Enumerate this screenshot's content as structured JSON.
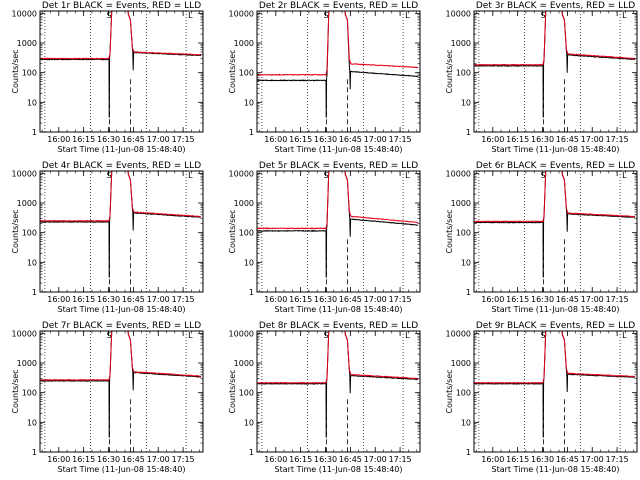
{
  "colors": {
    "events": "#000000",
    "lld": "#e8001c",
    "axes": "#000000",
    "background": "#ffffff"
  },
  "axes_common": {
    "ylabel": "Counts/sec",
    "xlabel": "Start Time (11-Jun-08 15:48:40)",
    "xtick_labels": [
      "16:00",
      "16:15",
      "16:30",
      "16:45",
      "17:00",
      "17:15"
    ],
    "xtick_minutes": [
      16.0,
      16.25,
      16.5,
      16.75,
      17.0,
      17.25
    ],
    "xlim_hours": [
      15.811,
      17.45
    ],
    "ytick_labels": [
      "1",
      "10",
      "100",
      "1000",
      "10000"
    ],
    "ytick_values": [
      1,
      10,
      100,
      1000,
      10000
    ],
    "ylim": [
      1,
      12000
    ],
    "yscale": "log",
    "dotted_verticals_hours": [
      15.86,
      16.32,
      16.88,
      17.28
    ],
    "dashed_verticals_hours": [
      16.51,
      16.72
    ],
    "saa_markers": [
      "S",
      "L"
    ]
  },
  "chart_data": [
    {
      "type": "line",
      "title": "Det 1r BLACK = Events, RED = LLD",
      "series": [
        {
          "values_before": 280,
          "values_after": 480,
          "after_end": 380
        },
        {
          "values_before": 300,
          "values_after": 500,
          "after_end": 400
        }
      ]
    },
    {
      "type": "line",
      "title": "Det 2r BLACK = Events, RED = LLD",
      "series": [
        {
          "values_before": 55,
          "values_after": 110,
          "after_end": 75
        },
        {
          "values_before": 85,
          "values_after": 200,
          "after_end": 150
        }
      ]
    },
    {
      "type": "line",
      "title": "Det 3r BLACK = Events, RED = LLD",
      "series": [
        {
          "values_before": 170,
          "values_after": 400,
          "after_end": 280
        },
        {
          "values_before": 185,
          "values_after": 430,
          "after_end": 300
        }
      ]
    },
    {
      "type": "line",
      "title": "Det 4r BLACK = Events, RED = LLD",
      "series": [
        {
          "values_before": 230,
          "values_after": 470,
          "after_end": 330
        },
        {
          "values_before": 250,
          "values_after": 500,
          "after_end": 350
        }
      ]
    },
    {
      "type": "line",
      "title": "Det 5r BLACK = Events, RED = LLD",
      "series": [
        {
          "values_before": 115,
          "values_after": 290,
          "after_end": 180
        },
        {
          "values_before": 140,
          "values_after": 360,
          "after_end": 220
        }
      ]
    },
    {
      "type": "line",
      "title": "Det 6r BLACK = Events, RED = LLD",
      "series": [
        {
          "values_before": 220,
          "values_after": 430,
          "after_end": 330
        },
        {
          "values_before": 240,
          "values_after": 460,
          "after_end": 350
        }
      ]
    },
    {
      "type": "line",
      "title": "Det 7r BLACK = Events, RED = LLD",
      "series": [
        {
          "values_before": 250,
          "values_after": 480,
          "after_end": 340
        },
        {
          "values_before": 270,
          "values_after": 510,
          "after_end": 360
        }
      ]
    },
    {
      "type": "line",
      "title": "Det 8r BLACK = Events, RED = LLD",
      "series": [
        {
          "values_before": 200,
          "values_after": 380,
          "after_end": 280
        },
        {
          "values_before": 215,
          "values_after": 410,
          "after_end": 300
        }
      ]
    },
    {
      "type": "line",
      "title": "Det 9r BLACK = Events, RED = LLD",
      "series": [
        {
          "values_before": 200,
          "values_after": 420,
          "after_end": 330
        },
        {
          "values_before": 215,
          "values_after": 450,
          "after_end": 350
        }
      ]
    }
  ]
}
